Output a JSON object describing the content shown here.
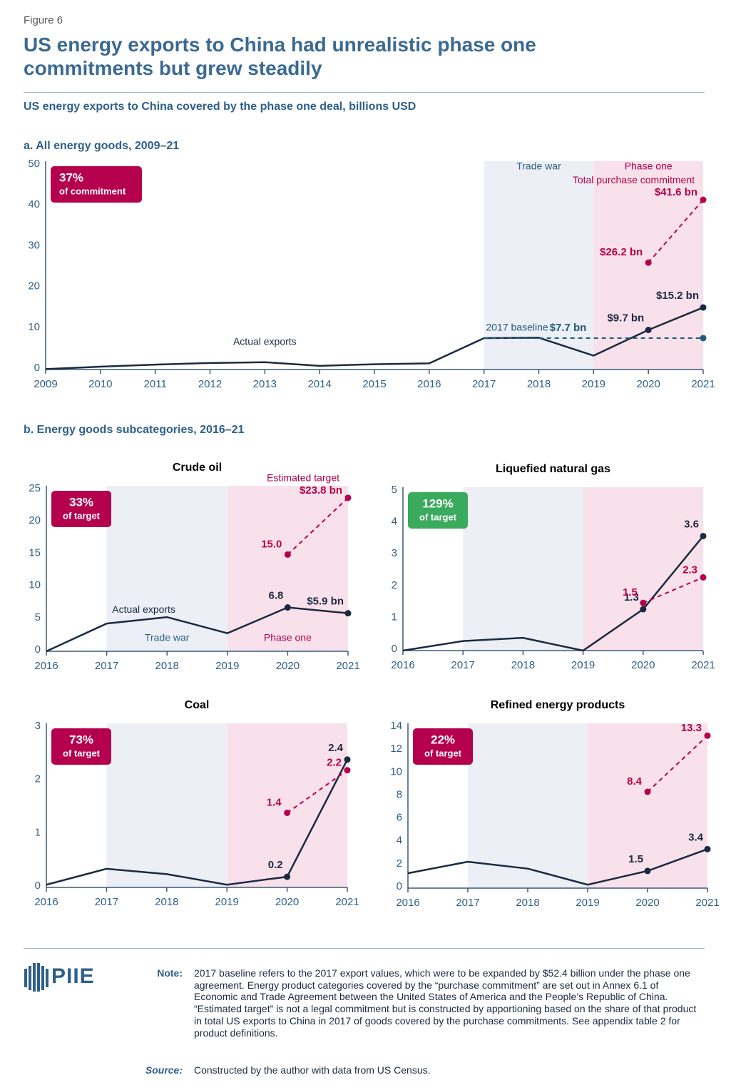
{
  "figure_label": "Figure 6",
  "title": "US energy exports to China had unrealistic phase one commitments but grew steadily",
  "subtitle": "US energy exports to China covered by the phase one deal, billions USD",
  "section_b_title": "b. Energy goods subcategories, 2016–21",
  "logo": "PIIE",
  "note": {
    "label": "Note:",
    "text": "2017 baseline refers to the 2017 export values, which were to be expanded by $52.4 billion under the phase one agreement. Energy product categories covered by the “purchase commitment” are set out in Annex 6.1 of Economic and Trade Agreement between the United States of America and the People’s Republic of China. “Estimated target” is not a legal commitment but is constructed by apportioning based on the share of that product in total US exports to China in 2017 of goods covered by the purchase commitments. See appendix table 2 for product definitions."
  },
  "source": {
    "label": "Source:",
    "text": "Constructed by the author with data from US Census."
  },
  "chart_data": [
    {
      "type": "line",
      "title": "a. All energy goods, 2009–21",
      "x": [
        2009,
        2010,
        2011,
        2012,
        2013,
        2014,
        2015,
        2016,
        2017,
        2018,
        2019,
        2020,
        2021
      ],
      "xlim": [
        2009,
        2021
      ],
      "xticks": [
        2009,
        2010,
        2011,
        2012,
        2013,
        2014,
        2015,
        2016,
        2017,
        2018,
        2019,
        2020,
        2021
      ],
      "ylim": [
        0,
        50
      ],
      "yticks": [
        0,
        10,
        20,
        30,
        40,
        50
      ],
      "badge": {
        "label": "37%",
        "caption": "of commitment",
        "color": "#b5004d"
      },
      "periods": [
        {
          "label": "Trade war",
          "range": [
            2017,
            2019
          ],
          "color": "#eceff5",
          "text_color": "#2e5f8a"
        },
        {
          "label": "Phase one",
          "range": [
            2019,
            2021
          ],
          "color": "#f9e1eb",
          "text_color": "#b5004d"
        }
      ],
      "series": [
        {
          "name": "Actual exports",
          "color": "#1b2a41",
          "values": [
            0.1,
            0.7,
            1.2,
            1.6,
            1.8,
            0.9,
            1.3,
            1.5,
            7.7,
            7.8,
            3.4,
            9.7,
            15.2
          ],
          "value_labels": [
            null,
            null,
            null,
            null,
            null,
            null,
            null,
            null,
            null,
            null,
            null,
            "$9.7 bn",
            "$15.2 bn"
          ]
        },
        {
          "name": "Total purchase commitment",
          "color": "#b5004d",
          "dashed": true,
          "x": [
            2020,
            2021
          ],
          "values": [
            26.2,
            41.6
          ],
          "value_labels": [
            "$26.2 bn",
            "$41.6 bn"
          ]
        },
        {
          "name": "2017 baseline",
          "color": "#1f5a7a",
          "dashed": true,
          "x": [
            2017,
            2018,
            2019,
            2020,
            2021
          ],
          "values": [
            7.7,
            7.7,
            7.7,
            7.7,
            7.7
          ],
          "value_labels": [
            "$7.7 bn",
            null,
            null,
            null,
            null
          ]
        }
      ]
    },
    {
      "type": "line",
      "title": "Crude oil",
      "x": [
        2016,
        2017,
        2018,
        2019,
        2020,
        2021
      ],
      "xlim": [
        2016,
        2021
      ],
      "xticks": [
        2016,
        2017,
        2018,
        2019,
        2020,
        2021
      ],
      "ylim": [
        0,
        25
      ],
      "yticks": [
        0,
        5,
        10,
        15,
        20,
        25
      ],
      "badge": {
        "label": "33%",
        "caption": "of target",
        "color": "#b5004d"
      },
      "periods": [
        {
          "label": "Trade war",
          "range": [
            2017,
            2019
          ],
          "color": "#eceff5",
          "text_color": "#2e5f8a"
        },
        {
          "label": "Phase one",
          "range": [
            2019,
            2021
          ],
          "color": "#f9e1eb",
          "text_color": "#b5004d"
        }
      ],
      "series": [
        {
          "name": "Actual exports",
          "color": "#1b2a41",
          "values": [
            0,
            4.3,
            5.3,
            2.8,
            6.8,
            5.9
          ],
          "value_labels": [
            null,
            null,
            null,
            null,
            "6.8",
            "$5.9 bn"
          ]
        },
        {
          "name": "Estimated target",
          "color": "#b5004d",
          "dashed": true,
          "x": [
            2020,
            2021
          ],
          "values": [
            15.0,
            23.8
          ],
          "value_labels": [
            "15.0",
            "$23.8 bn"
          ]
        }
      ]
    },
    {
      "type": "line",
      "title": "Liquefied natural gas",
      "x": [
        2016,
        2017,
        2018,
        2019,
        2020,
        2021
      ],
      "xlim": [
        2016,
        2021
      ],
      "xticks": [
        2016,
        2017,
        2018,
        2019,
        2020,
        2021
      ],
      "ylim": [
        0,
        5
      ],
      "yticks": [
        0,
        1,
        2,
        3,
        4,
        5
      ],
      "badge": {
        "label": "129%",
        "caption": "of target",
        "color": "#3aaa5c"
      },
      "periods": [
        {
          "range": [
            2017,
            2019
          ],
          "color": "#eceff5"
        },
        {
          "range": [
            2019,
            2021
          ],
          "color": "#f9e1eb"
        }
      ],
      "series": [
        {
          "color": "#1b2a41",
          "values": [
            0,
            0.3,
            0.4,
            0,
            1.3,
            3.6
          ],
          "value_labels": [
            null,
            null,
            null,
            null,
            "1.3",
            "3.6"
          ]
        },
        {
          "color": "#b5004d",
          "dashed": true,
          "x": [
            2020,
            2021
          ],
          "values": [
            1.5,
            2.3
          ],
          "value_labels": [
            "1.5",
            "2.3"
          ]
        }
      ]
    },
    {
      "type": "line",
      "title": "Coal",
      "x": [
        2016,
        2017,
        2018,
        2019,
        2020,
        2021
      ],
      "xlim": [
        2016,
        2021
      ],
      "xticks": [
        2016,
        2017,
        2018,
        2019,
        2020,
        2021
      ],
      "ylim": [
        0,
        3
      ],
      "yticks": [
        0,
        1,
        2,
        3
      ],
      "badge": {
        "label": "73%",
        "caption": "of target",
        "color": "#b5004d"
      },
      "periods": [
        {
          "range": [
            2017,
            2019
          ],
          "color": "#eceff5"
        },
        {
          "range": [
            2019,
            2021
          ],
          "color": "#f9e1eb"
        }
      ],
      "series": [
        {
          "color": "#1b2a41",
          "values": [
            0.05,
            0.35,
            0.25,
            0.05,
            0.2,
            2.4
          ],
          "value_labels": [
            null,
            null,
            null,
            null,
            "0.2",
            "2.4"
          ]
        },
        {
          "color": "#b5004d",
          "dashed": true,
          "x": [
            2020,
            2021
          ],
          "values": [
            1.4,
            2.2
          ],
          "value_labels": [
            "1.4",
            "2.2"
          ]
        }
      ]
    },
    {
      "type": "line",
      "title": "Refined energy products",
      "x": [
        2016,
        2017,
        2018,
        2019,
        2020,
        2021
      ],
      "xlim": [
        2016,
        2021
      ],
      "xticks": [
        2016,
        2017,
        2018,
        2019,
        2020,
        2021
      ],
      "ylim": [
        0,
        14
      ],
      "yticks": [
        0,
        2,
        4,
        6,
        8,
        10,
        12,
        14
      ],
      "badge": {
        "label": "22%",
        "caption": "of target",
        "color": "#b5004d"
      },
      "periods": [
        {
          "range": [
            2017,
            2019
          ],
          "color": "#eceff5"
        },
        {
          "range": [
            2019,
            2021
          ],
          "color": "#f9e1eb"
        }
      ],
      "series": [
        {
          "color": "#1b2a41",
          "values": [
            1.3,
            2.3,
            1.7,
            0.3,
            1.5,
            3.4
          ],
          "value_labels": [
            null,
            null,
            null,
            null,
            "1.5",
            "3.4"
          ]
        },
        {
          "color": "#b5004d",
          "dashed": true,
          "x": [
            2020,
            2021
          ],
          "values": [
            8.4,
            13.3
          ],
          "value_labels": [
            "8.4",
            "13.3"
          ]
        }
      ]
    }
  ]
}
